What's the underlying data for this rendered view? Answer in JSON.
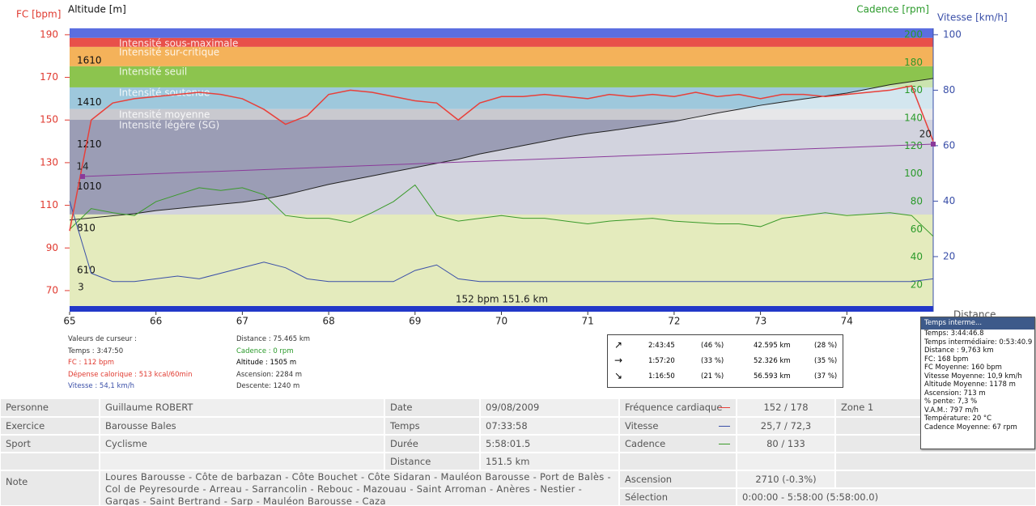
{
  "chart": {
    "axis_labels": {
      "fc": "FC [bpm]",
      "altitude": "Altitude  [m]",
      "cadence": "Cadence [rpm]",
      "vitesse": "Vitesse [km/h]",
      "distance": "Distance"
    },
    "xlim": [
      65,
      75
    ],
    "xticks": [
      65,
      66,
      67,
      68,
      69,
      70,
      71,
      72,
      73,
      74
    ],
    "fc_lim": [
      62,
      193
    ],
    "fc_ticks": [
      70,
      90,
      110,
      130,
      150,
      170,
      190
    ],
    "alt_lim": [
      432,
      1764
    ],
    "alt_ticks": [
      610,
      810,
      1010,
      1210,
      1410,
      1610
    ],
    "cad_lim": [
      3.7,
      204.7
    ],
    "cad_ticks": [
      20,
      40,
      60,
      80,
      100,
      120,
      140,
      160,
      180,
      200
    ],
    "vit_lim": [
      1.6,
      102.3
    ],
    "vit_ticks": [
      20,
      40,
      60,
      80,
      100
    ],
    "temp_lim": [
      -10.3,
      41.45
    ],
    "zones": [
      {
        "from": 188.5,
        "to": 193,
        "color": "#5b6ee0"
      },
      {
        "name": "Intensité sous-maximale",
        "from": 184.3,
        "to": 188.5,
        "color": "#e8504a"
      },
      {
        "name": "Intensité sur-critique",
        "from": 175.2,
        "to": 184.3,
        "color": "#f4b25a"
      },
      {
        "name": "Intensité seuil",
        "from": 165.3,
        "to": 175.2,
        "color": "#8cc44e"
      },
      {
        "name": "Intensité soutenue",
        "from": 155.1,
        "to": 165.3,
        "color": "#9ec8dc"
      },
      {
        "name": "Intensité moyenne",
        "from": 150.1,
        "to": 155.1,
        "color": "#c9c9cf"
      },
      {
        "name": "Intensité légère (SG)",
        "from": 105.7,
        "to": 150.1,
        "color": "#9b9db5"
      },
      {
        "from": 62.8,
        "to": 105.7,
        "color": "#e4ebbd"
      }
    ],
    "x": [
      65,
      65.25,
      65.5,
      65.75,
      66,
      66.25,
      66.5,
      66.75,
      67,
      67.25,
      67.5,
      67.75,
      68,
      68.25,
      68.5,
      68.75,
      69,
      69.25,
      69.5,
      69.75,
      70,
      70.25,
      70.5,
      70.75,
      71,
      71.25,
      71.5,
      71.75,
      72,
      72.25,
      72.5,
      72.75,
      73,
      73.25,
      73.5,
      73.75,
      74,
      74.25,
      74.5,
      74.75,
      75
    ],
    "lines": {
      "altitude": {
        "color": "#222222",
        "values": [
          850,
          860,
          870,
          880,
          895,
          905,
          915,
          925,
          935,
          950,
          970,
          995,
          1020,
          1040,
          1060,
          1080,
          1100,
          1120,
          1140,
          1165,
          1185,
          1205,
          1225,
          1245,
          1262,
          1275,
          1290,
          1305,
          1320,
          1340,
          1360,
          1378,
          1397,
          1412,
          1427,
          1441,
          1455,
          1475,
          1495,
          1510,
          1525
        ]
      },
      "cadence": {
        "color": "#3a9a2a",
        "values": [
          60,
          75,
          72,
          70,
          80,
          85,
          90,
          88,
          90,
          85,
          70,
          68,
          68,
          65,
          72,
          80,
          92,
          70,
          66,
          68,
          70,
          68,
          68,
          66,
          64,
          66,
          67,
          68,
          66,
          65,
          64,
          64,
          62,
          68,
          70,
          72,
          70,
          71,
          72,
          70,
          55
        ]
      },
      "vitesse": {
        "color": "#3a4fa8",
        "values": [
          40,
          14,
          11,
          11,
          12,
          13,
          12,
          14,
          16,
          18,
          16,
          12,
          11,
          11,
          11,
          11,
          15,
          17,
          12,
          11,
          11,
          11,
          11,
          11,
          11,
          11,
          11,
          11,
          11,
          11,
          11,
          11,
          11,
          11,
          11,
          11,
          11,
          11,
          11,
          11,
          12
        ]
      },
      "fc": {
        "color": "#e8403a",
        "values": [
          98,
          150,
          158,
          160,
          161,
          162,
          163,
          162,
          160,
          155,
          148,
          152,
          162,
          164,
          163,
          161,
          159,
          158,
          150,
          158,
          161,
          161,
          162,
          161,
          160,
          162,
          161,
          162,
          161,
          163,
          161,
          162,
          160,
          162,
          162,
          161,
          162,
          163,
          164,
          166,
          140
        ]
      }
    },
    "temperature": {
      "name": "Température",
      "color": "#8a3a9a",
      "x": [
        65.15,
        75
      ],
      "values": [
        14,
        20
      ]
    },
    "cursor_label": "3",
    "average_label": "152 bpm 151.6 km"
  },
  "cursor": {
    "left": [
      "Valeurs de curseur :",
      "Temps : 3:47:50",
      "FC : 112 bpm",
      "Dépense calorique : 513 kcal/60min",
      "Vitesse : 54,1 km/h"
    ],
    "middle": [
      "Distance : 75.465 km",
      "Cadence : 0 rpm",
      "Altitude : 1505 m",
      "Ascension: 2284 m",
      "Descente: 1240 m"
    ]
  },
  "slopes": [
    [
      "↗",
      "2:43:45",
      "(46 %)",
      "42.595 km",
      "(28 %)"
    ],
    [
      "→",
      "1:57:20",
      "(33 %)",
      "52.326 km",
      "(35 %)"
    ],
    [
      "↘",
      "1:16:50",
      "(21 %)",
      "56.593 km",
      "(37 %)"
    ]
  ],
  "popup": {
    "title": "Temps interme...",
    "lines": [
      "Temps: 3:44:46.8",
      "Temps intermédiaire: 0:53:40.9",
      "Distance :  9,763 km",
      "FC: 168 bpm",
      "FC Moyenne:  160 bpm",
      "Vitesse Moyenne:  10,9 km/h",
      "Altitude Moyenne:  1178 m",
      "Ascension:  713 m",
      "% pente: 7,3 %",
      "V.A.M.: 797 m/h",
      "Température: 20 °C",
      "Cadence Moyenne:  67 rpm"
    ]
  },
  "info": {
    "rows": [
      [
        "Personne",
        "Guillaume ROBERT",
        "Date",
        "09/08/2009",
        "Fréquence cardiaque",
        "152 / 178",
        "Zone 1"
      ],
      [
        "Exercice",
        "Barousse Bales",
        "Temps",
        "07:33:58",
        "Vitesse",
        "25,7 / 72,3"
      ],
      [
        "Sport",
        "Cyclisme",
        "Durée",
        "5:58:01.5",
        "Cadence",
        "80 / 133"
      ],
      [
        "Distance",
        "151.5 km"
      ]
    ],
    "note_label": "Note",
    "note": "Loures Barousse - Côte de barbazan - Côte Bouchet - Côte Sidaran - Mauléon Barousse - Port de Balès - Col de Peyresourde - Arreau - Sarrancolin - Rebouc - Mazouau - Saint Arroman - Anères - Nestier - Gargas - Saint Bertrand - Sarp - Mauléon Barousse - Caza",
    "ascension_label": "Ascension",
    "ascension": "2710 (-0.3%)",
    "selection_label": "Sélection",
    "selection": "0:00:00 - 5:58:00 (5:58:00.0)"
  }
}
